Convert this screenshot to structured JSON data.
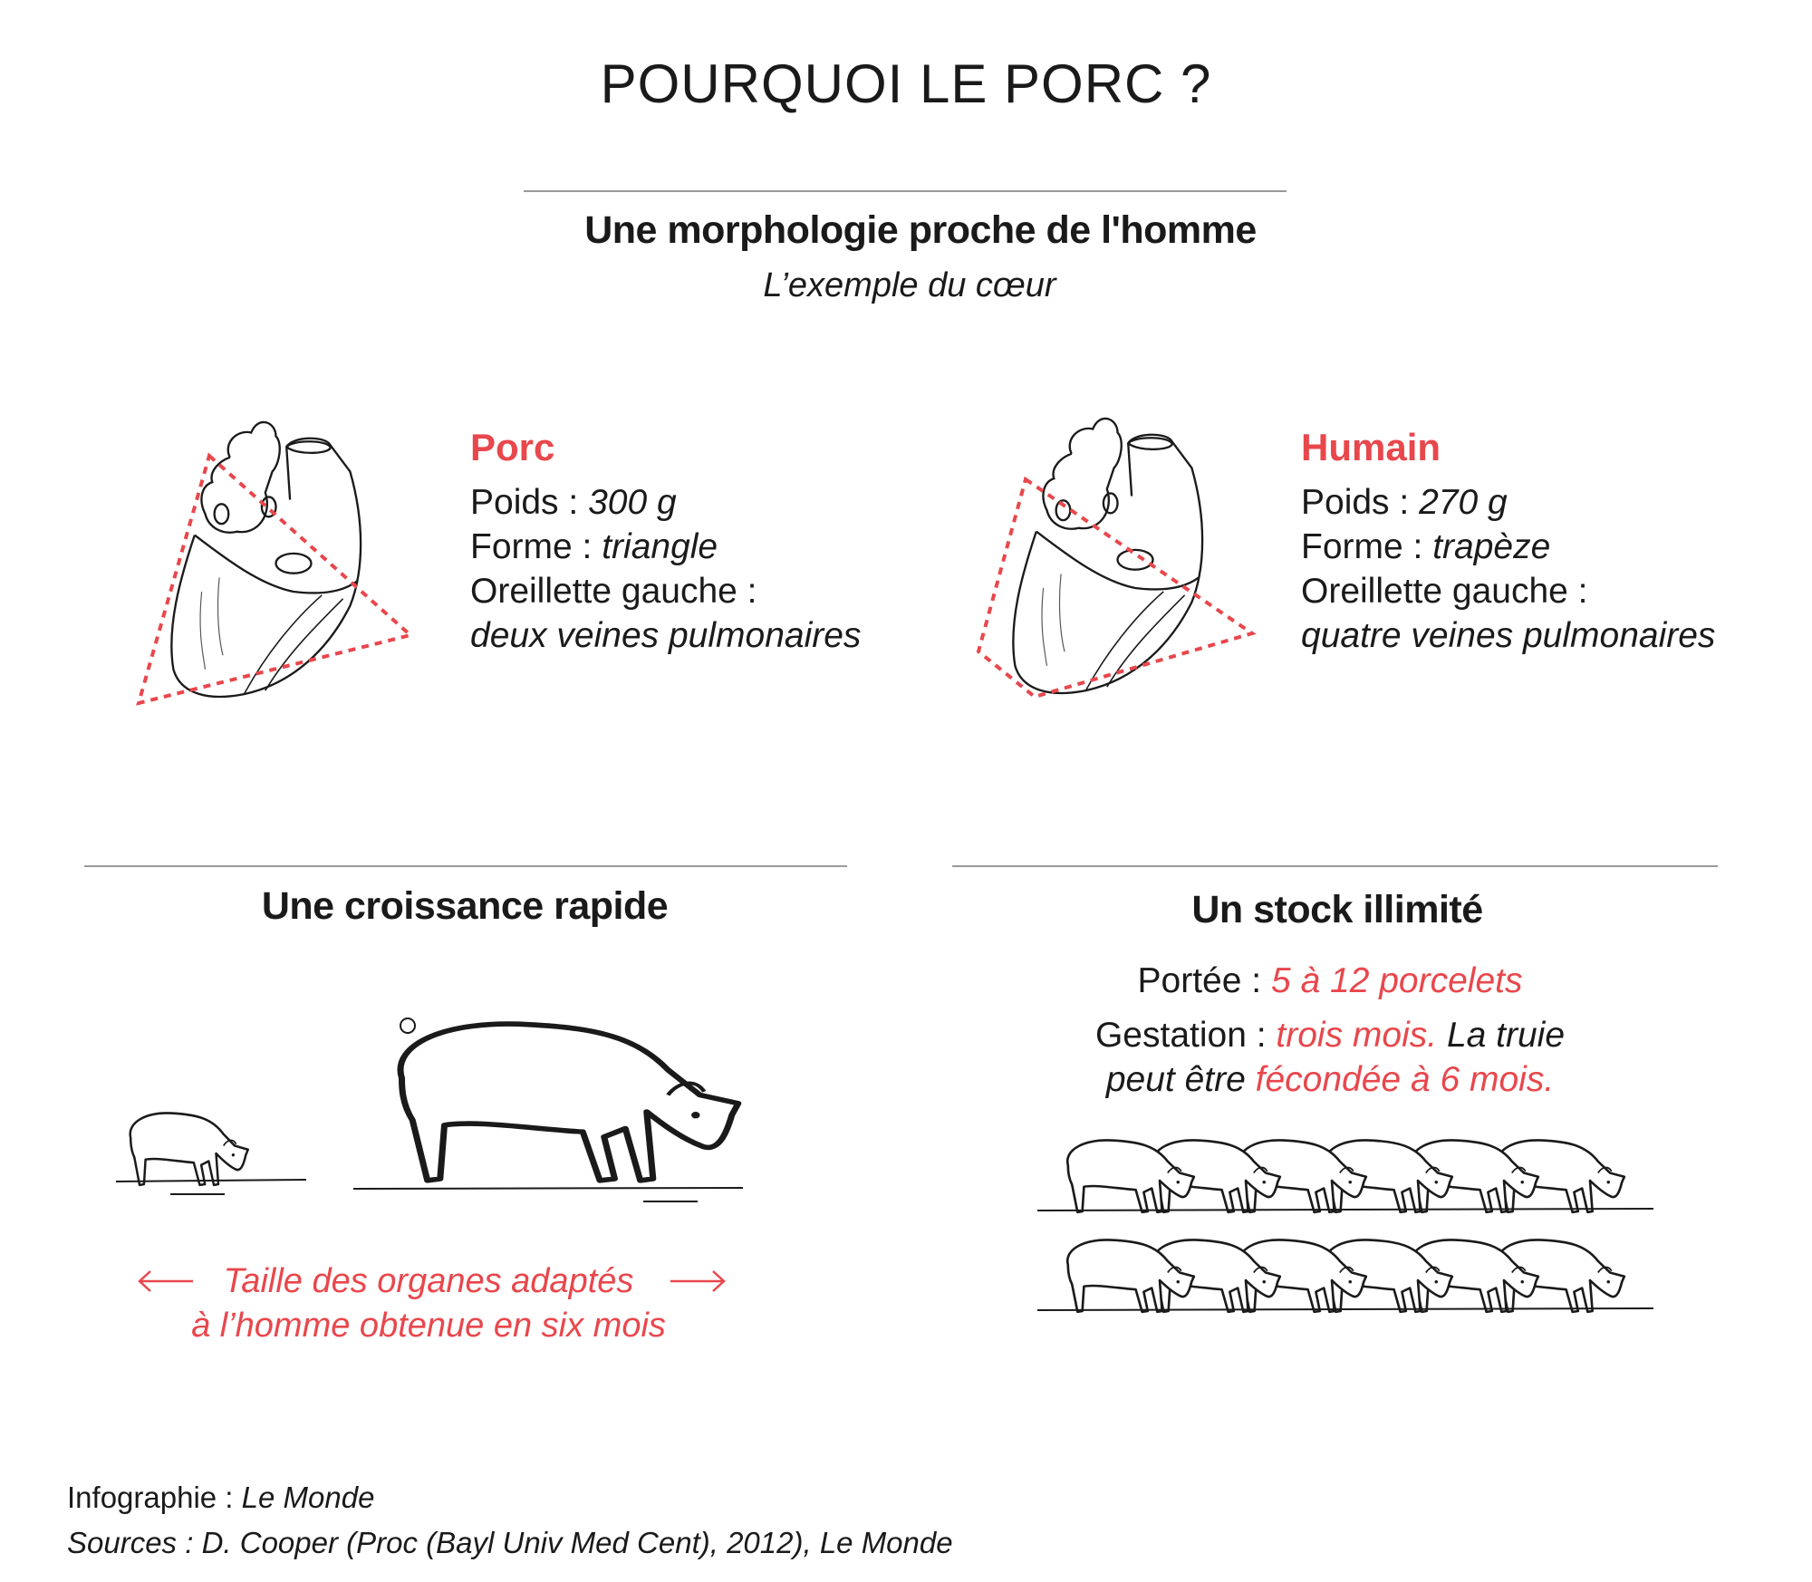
{
  "title": "POURQUOI LE PORC ?",
  "morphology": {
    "heading": "Une morphologie proche de l'homme",
    "subheading": "L’exemple du cœur",
    "porc": {
      "name": "Porc",
      "weight_label": "Poids :",
      "weight_value": "300 g",
      "shape_label": "Forme :",
      "shape_value": "triangle",
      "atrium_label": "Oreillette gauche :",
      "atrium_value": "deux veines pulmonaires"
    },
    "humain": {
      "name": "Humain",
      "weight_label": "Poids :",
      "weight_value": "270 g",
      "shape_label": "Forme :",
      "shape_value": "trapèze",
      "atrium_label": "Oreillette gauche :",
      "atrium_value": "quatre veines pulmonaires"
    }
  },
  "growth": {
    "heading": "Une croissance rapide",
    "caption_line1": "Taille des organes adaptés",
    "caption_line2": "à l’homme obtenue en six mois"
  },
  "stock": {
    "heading": "Un stock illimité",
    "litter_label": "Portée :",
    "litter_value": "5 à 12 porcelets",
    "gestation_label": "Gestation :",
    "gestation_value": "trois mois.",
    "gestation_text1": "La truie",
    "gestation_text2": "peut être",
    "gestation_value2": "fécondée à 6 mois."
  },
  "footer": {
    "credit_label": "Infographie :",
    "credit_value": "Le Monde",
    "sources": "Sources : D. Cooper (Proc (Bayl Univ Med Cent), 2012), Le Monde"
  },
  "colors": {
    "accent": "#e8474c",
    "text": "#1a1a1a",
    "rule": "#9a9a9a"
  }
}
